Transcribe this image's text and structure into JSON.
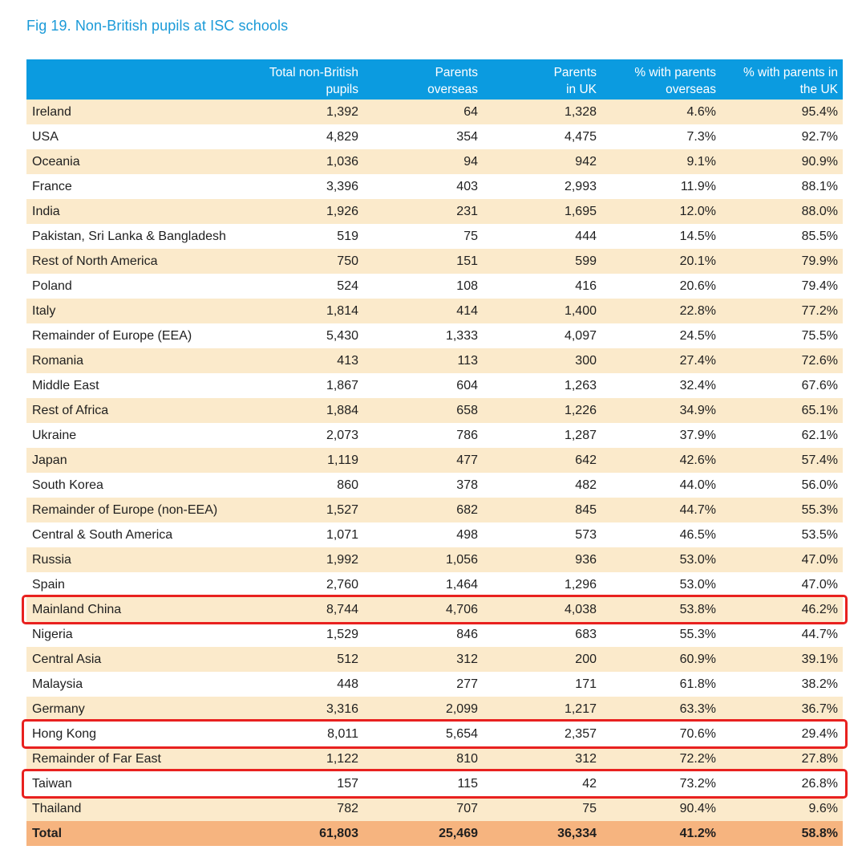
{
  "title": "Fig 19. Non-British pupils at ISC schools",
  "columns": [
    {
      "line1": "",
      "line2": ""
    },
    {
      "line1": "Total non-British",
      "line2": "pupils"
    },
    {
      "line1": "Parents",
      "line2": "overseas"
    },
    {
      "line1": "Parents",
      "line2": "in UK"
    },
    {
      "line1": "% with parents",
      "line2": "overseas"
    },
    {
      "line1": "% with parents in",
      "line2": "the UK"
    }
  ],
  "rows": [
    [
      "Ireland",
      "1,392",
      "64",
      "1,328",
      "4.6%",
      "95.4%"
    ],
    [
      "USA",
      "4,829",
      "354",
      "4,475",
      "7.3%",
      "92.7%"
    ],
    [
      "Oceania",
      "1,036",
      "94",
      "942",
      "9.1%",
      "90.9%"
    ],
    [
      "France",
      "3,396",
      "403",
      "2,993",
      "11.9%",
      "88.1%"
    ],
    [
      "India",
      "1,926",
      "231",
      "1,695",
      "12.0%",
      "88.0%"
    ],
    [
      "Pakistan, Sri Lanka & Bangladesh",
      "519",
      "75",
      "444",
      "14.5%",
      "85.5%"
    ],
    [
      "Rest of North America",
      "750",
      "151",
      "599",
      "20.1%",
      "79.9%"
    ],
    [
      "Poland",
      "524",
      "108",
      "416",
      "20.6%",
      "79.4%"
    ],
    [
      "Italy",
      "1,814",
      "414",
      "1,400",
      "22.8%",
      "77.2%"
    ],
    [
      "Remainder of Europe (EEA)",
      "5,430",
      "1,333",
      "4,097",
      "24.5%",
      "75.5%"
    ],
    [
      "Romania",
      "413",
      "113",
      "300",
      "27.4%",
      "72.6%"
    ],
    [
      "Middle East",
      "1,867",
      "604",
      "1,263",
      "32.4%",
      "67.6%"
    ],
    [
      "Rest of Africa",
      "1,884",
      "658",
      "1,226",
      "34.9%",
      "65.1%"
    ],
    [
      "Ukraine",
      "2,073",
      "786",
      "1,287",
      "37.9%",
      "62.1%"
    ],
    [
      "Japan",
      "1,119",
      "477",
      "642",
      "42.6%",
      "57.4%"
    ],
    [
      "South Korea",
      "860",
      "378",
      "482",
      "44.0%",
      "56.0%"
    ],
    [
      "Remainder of Europe (non-EEA)",
      "1,527",
      "682",
      "845",
      "44.7%",
      "55.3%"
    ],
    [
      "Central & South America",
      "1,071",
      "498",
      "573",
      "46.5%",
      "53.5%"
    ],
    [
      "Russia",
      "1,992",
      "1,056",
      "936",
      "53.0%",
      "47.0%"
    ],
    [
      "Spain",
      "2,760",
      "1,464",
      "1,296",
      "53.0%",
      "47.0%"
    ],
    [
      "Mainland China",
      "8,744",
      "4,706",
      "4,038",
      "53.8%",
      "46.2%"
    ],
    [
      "Nigeria",
      "1,529",
      "846",
      "683",
      "55.3%",
      "44.7%"
    ],
    [
      "Central Asia",
      "512",
      "312",
      "200",
      "60.9%",
      "39.1%"
    ],
    [
      "Malaysia",
      "448",
      "277",
      "171",
      "61.8%",
      "38.2%"
    ],
    [
      "Germany",
      "3,316",
      "2,099",
      "1,217",
      "63.3%",
      "36.7%"
    ],
    [
      "Hong Kong",
      "8,011",
      "5,654",
      "2,357",
      "70.6%",
      "29.4%"
    ],
    [
      "Remainder of Far East",
      "1,122",
      "810",
      "312",
      "72.2%",
      "27.8%"
    ],
    [
      "Taiwan",
      "157",
      "115",
      "42",
      "73.2%",
      "26.8%"
    ],
    [
      "Thailand",
      "782",
      "707",
      "75",
      "90.4%",
      "9.6%"
    ]
  ],
  "total": [
    "Total",
    "61,803",
    "25,469",
    "36,334",
    "41.2%",
    "58.8%"
  ],
  "highlighted_rows": [
    "Mainland China",
    "Hong Kong",
    "Taiwan"
  ],
  "colors": {
    "title": "#1a9ad8",
    "header_bg": "#0b9be0",
    "band": "#fbeacb",
    "total_bg": "#f6b47f",
    "highlight": "#e8211f"
  }
}
